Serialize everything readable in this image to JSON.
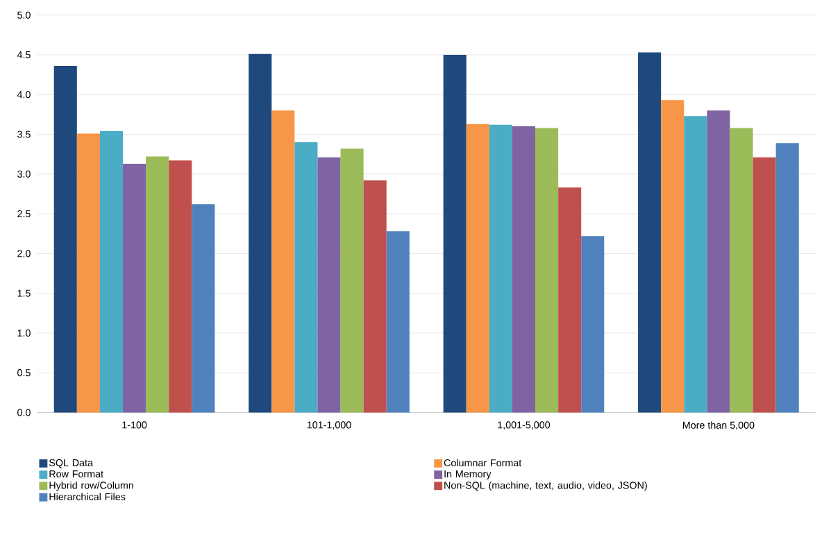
{
  "chart_data": {
    "type": "bar",
    "categories": [
      "1-100",
      "101-1,000",
      "1,001-5,000",
      "More than 5,000"
    ],
    "series": [
      {
        "name": "SQL Data",
        "color": "#1f497d",
        "values": [
          4.36,
          4.51,
          4.5,
          4.53
        ]
      },
      {
        "name": "Columnar Format",
        "color": "#f79646",
        "values": [
          3.51,
          3.8,
          3.63,
          3.93
        ]
      },
      {
        "name": "Row Format",
        "color": "#4bacc6",
        "values": [
          3.54,
          3.4,
          3.62,
          3.73
        ]
      },
      {
        "name": "In Memory",
        "color": "#8064a2",
        "values": [
          3.13,
          3.21,
          3.6,
          3.8
        ]
      },
      {
        "name": "Hybrid row/Column",
        "color": "#9bbb59",
        "values": [
          3.22,
          3.32,
          3.58,
          3.58
        ]
      },
      {
        "name": "Non-SQL (machine, text, audio, video, JSON)",
        "color": "#c0504d",
        "values": [
          3.17,
          2.92,
          2.83,
          3.21
        ]
      },
      {
        "name": "Hierarchical Files",
        "color": "#4f81bd",
        "values": [
          2.62,
          2.28,
          2.22,
          3.39
        ]
      }
    ],
    "ylim": [
      0,
      5
    ],
    "yticks": [
      {
        "value": 0,
        "label": "0.0"
      },
      {
        "value": 0.5,
        "label": "0.5"
      },
      {
        "value": 1,
        "label": "1.0"
      },
      {
        "value": 1.5,
        "label": "1.5"
      },
      {
        "value": 2,
        "label": "2.0"
      },
      {
        "value": 2.5,
        "label": "2.5"
      },
      {
        "value": 3,
        "label": "3.0"
      },
      {
        "value": 3.5,
        "label": "3.5"
      },
      {
        "value": 4,
        "label": "4.0"
      },
      {
        "value": 4.5,
        "label": "4.5"
      },
      {
        "value": 5,
        "label": "5.0"
      }
    ],
    "grid": "y",
    "legend": "bottom"
  }
}
